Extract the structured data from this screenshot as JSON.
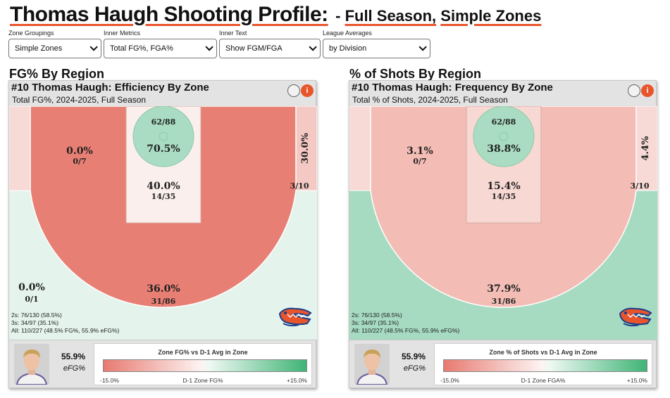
{
  "page": {
    "title_main": "Thomas Haugh Shooting Profile:",
    "title_dash": "-",
    "title_sub1": "Full Season,",
    "title_sub2": "Simple Zones"
  },
  "controls": [
    {
      "label": "Zone Groupings",
      "value": "Simple Zones"
    },
    {
      "label": "Inner Metrics",
      "value": "Total FG%, FGA%"
    },
    {
      "label": "Inner Text",
      "value": "Show FGM/FGA"
    },
    {
      "label": "League Averages",
      "value": "by Division"
    }
  ],
  "colors": {
    "accent": "#e8552d",
    "red_strong": "#e87f74",
    "red_light": "#f3bdb6",
    "red_pale": "#f7d9d5",
    "green_strong": "#a6dbc1",
    "green_light": "#e4f4ec",
    "green_rim": "#a9dcc2"
  },
  "left": {
    "section_title": "FG% By Region",
    "card_title": "#10 Thomas Haugh: Efficiency By Zone",
    "card_sub": "Total FG%, 2024-2025, Full Season",
    "info_icon": "i",
    "zones": {
      "rim_frac": "62/88",
      "rim_pct": "70.5%",
      "paint_pct": "40.0%",
      "paint_frac": "14/35",
      "mid_pct": "0.0%",
      "mid_frac": "0/7",
      "corner_pct": "30.0%",
      "corner_frac": "3/10",
      "left_pct": "0.0%",
      "left_frac": "0/1",
      "three_pct": "36.0%",
      "three_frac": "31/86"
    },
    "totals": [
      "2s: 76/130 (58.5%)",
      "3s: 34/97 (35.1%)",
      "All: 110/227 (48.5% FG%, 55.9% eFG%)"
    ],
    "efg_value": "55.9%",
    "efg_label": "eFG%",
    "legend_title": "Zone FG% vs D-1 Avg in Zone",
    "legend_min": "-15.0%",
    "legend_axis": "D-1 Zone FG%",
    "legend_max": "+15.0%"
  },
  "right": {
    "section_title": "% of Shots By Region",
    "card_title": "#10 Thomas Haugh: Frequency By Zone",
    "card_sub": "Total % of Shots, 2024-2025, Full Season",
    "info_icon": "i",
    "zones": {
      "rim_frac": "62/88",
      "rim_pct": "38.8%",
      "paint_pct": "15.4%",
      "paint_frac": "14/35",
      "mid_pct": "3.1%",
      "mid_frac": "0/7",
      "corner_pct": "4.4%",
      "corner_frac": "3/10",
      "three_pct": "37.9%",
      "three_frac": "31/86"
    },
    "totals": [
      "2s: 76/130 (58.5%)",
      "3s: 34/97 (35.1%)",
      "All: 110/227 (48.5% FG%, 55.9% eFG%)"
    ],
    "efg_value": "55.9%",
    "efg_label": "eFG%",
    "legend_title": "Zone % of Shots vs D-1 Avg in Zone",
    "legend_min": "-15.0%",
    "legend_axis": "D-1 Zone FGA%",
    "legend_max": "+15.0%"
  }
}
